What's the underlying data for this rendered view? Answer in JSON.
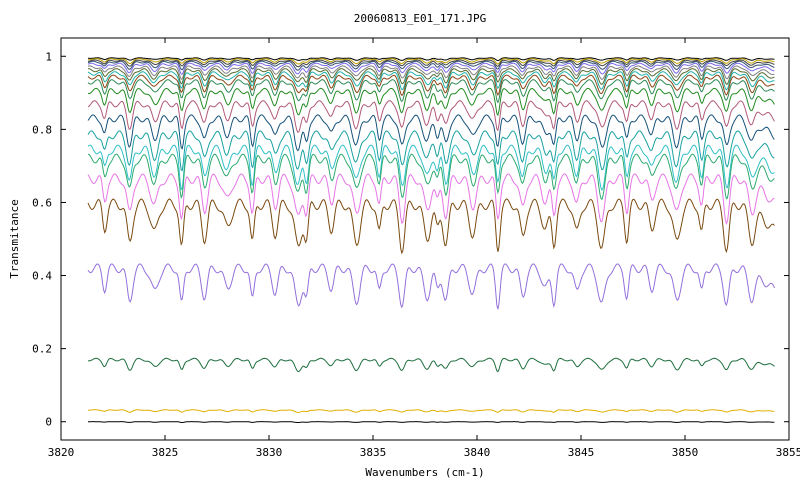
{
  "chart_data": {
    "type": "line",
    "title": "20060813_E01_171.JPG",
    "xlabel": "Wavenumbers (cm-1)",
    "ylabel": "Transmitance",
    "xlim": [
      3820,
      3855
    ],
    "ylim": [
      -0.05,
      1.05
    ],
    "x_ticks": [
      "3820",
      "3825",
      "3830",
      "3835",
      "3840",
      "3845",
      "3850",
      "3855"
    ],
    "y_ticks": [
      "0",
      "0.2",
      "0.4",
      "0.6",
      "0.8",
      "1"
    ],
    "grid": false,
    "legend": "none",
    "x_range": [
      3821.3,
      3854.3
    ],
    "absorption_lines": [
      3822.1,
      3823.3,
      3824.5,
      3825.8,
      3826.9,
      3828.0,
      3829.2,
      3830.3,
      3831.4,
      3831.8,
      3833.0,
      3834.2,
      3835.3,
      3836.4,
      3837.6,
      3838.1,
      3838.5,
      3839.8,
      3841.0,
      3842.2,
      3843.3,
      3843.7,
      3844.8,
      3846.0,
      3847.2,
      3848.4,
      3849.6,
      3850.8,
      3852.0,
      3853.2
    ],
    "series": [
      {
        "baseline": 0.995,
        "depth": 0.006,
        "color": "#000000"
      },
      {
        "baseline": 0.992,
        "depth": 0.012,
        "color": "#c0a000"
      },
      {
        "baseline": 0.988,
        "depth": 0.015,
        "color": "#404040"
      },
      {
        "baseline": 0.984,
        "depth": 0.02,
        "color": "#2f4f6f"
      },
      {
        "baseline": 0.978,
        "depth": 0.025,
        "color": "#7b68ee"
      },
      {
        "baseline": 0.97,
        "depth": 0.03,
        "color": "#808080"
      },
      {
        "baseline": 0.962,
        "depth": 0.035,
        "color": "#556b2f"
      },
      {
        "baseline": 0.953,
        "depth": 0.04,
        "color": "#20b2aa"
      },
      {
        "baseline": 0.943,
        "depth": 0.045,
        "color": "#8b4513"
      },
      {
        "baseline": 0.93,
        "depth": 0.05,
        "color": "#2e8b57"
      },
      {
        "baseline": 0.905,
        "depth": 0.06,
        "color": "#228b22"
      },
      {
        "baseline": 0.87,
        "depth": 0.07,
        "color": "#b05a7a"
      },
      {
        "baseline": 0.83,
        "depth": 0.08,
        "color": "#17527a"
      },
      {
        "baseline": 0.785,
        "depth": 0.09,
        "color": "#1aa0a0"
      },
      {
        "baseline": 0.745,
        "depth": 0.1,
        "color": "#30c0c8"
      },
      {
        "baseline": 0.72,
        "depth": 0.1,
        "color": "#2eaa70"
      },
      {
        "baseline": 0.665,
        "depth": 0.11,
        "color": "#e676e6"
      },
      {
        "baseline": 0.595,
        "depth": 0.12,
        "color": "#7a4a10"
      },
      {
        "baseline": 0.42,
        "depth": 0.1,
        "color": "#9370db"
      },
      {
        "baseline": 0.17,
        "depth": 0.03,
        "color": "#1e6e3e"
      },
      {
        "baseline": 0.032,
        "depth": 0.006,
        "color": "#e0b000"
      },
      {
        "baseline": 0.0,
        "depth": 0.002,
        "color": "#000000"
      }
    ]
  }
}
